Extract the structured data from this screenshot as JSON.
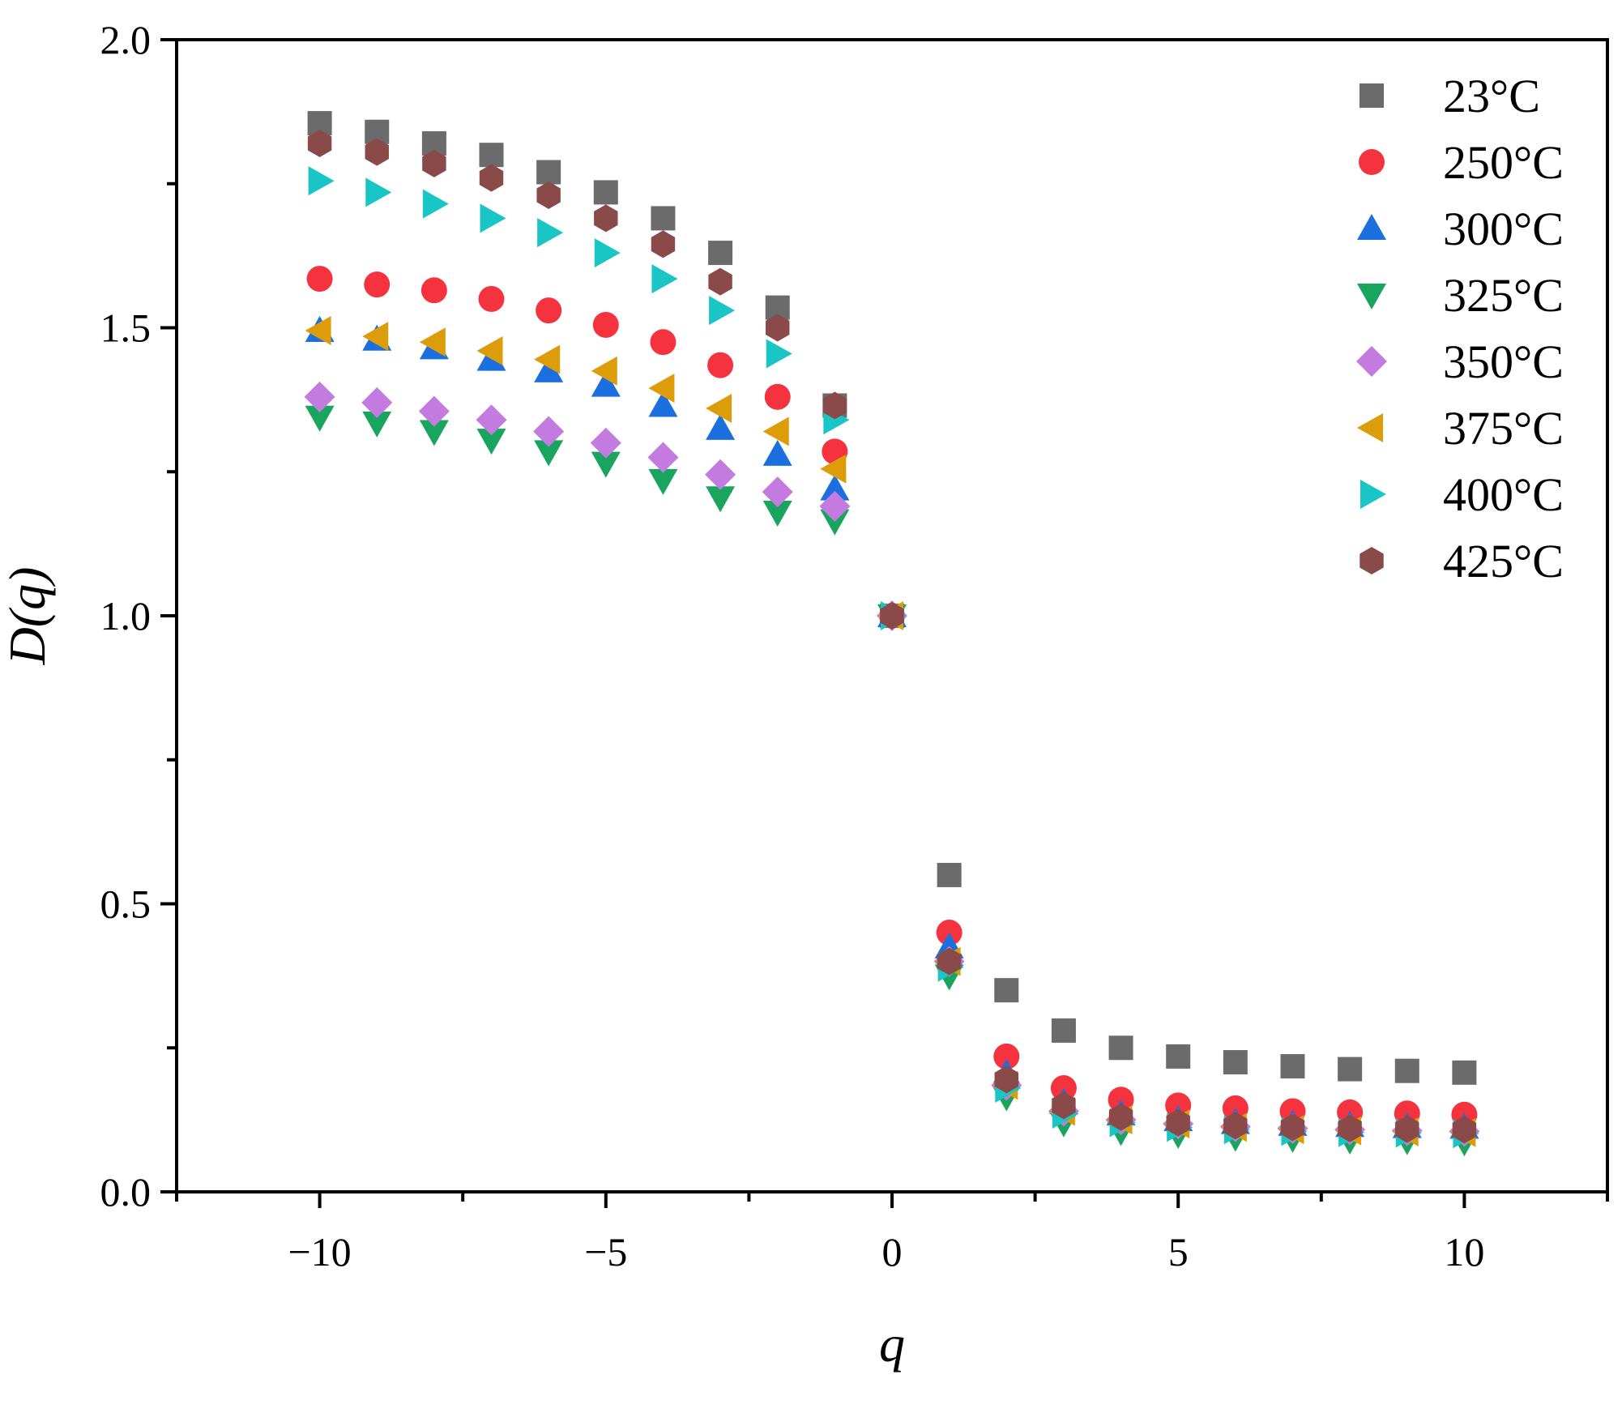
{
  "chart_data": {
    "type": "scatter",
    "title": "",
    "xlabel": "q",
    "ylabel": "D(q)",
    "xlim": [
      -12.5,
      12.5
    ],
    "ylim": [
      0,
      2
    ],
    "x_ticks": [
      -10,
      -5,
      0,
      5,
      10
    ],
    "x_tick_labels": [
      "−10",
      "−5",
      "0",
      "5",
      "10"
    ],
    "y_ticks": [
      0,
      0.5,
      1,
      1.5,
      2
    ],
    "y_tick_labels": [
      "0.0",
      "0.5",
      "1.0",
      "1.5",
      "2.0"
    ],
    "grid": false,
    "legend_position": "top-right",
    "x": [
      -10,
      -9,
      -8,
      -7,
      -6,
      -5,
      -4,
      -3,
      -2,
      -1,
      0,
      1,
      2,
      3,
      4,
      5,
      6,
      7,
      8,
      9,
      10
    ],
    "series": [
      {
        "name": "23°C",
        "marker": "square",
        "color": "#6b6b6b",
        "values": [
          1.855,
          1.84,
          1.82,
          1.8,
          1.77,
          1.735,
          1.69,
          1.63,
          1.535,
          1.365,
          1.0,
          0.55,
          0.35,
          0.28,
          0.25,
          0.235,
          0.225,
          0.218,
          0.213,
          0.21,
          0.207
        ]
      },
      {
        "name": "250°C",
        "marker": "circle",
        "color": "#f5333f",
        "values": [
          1.585,
          1.575,
          1.565,
          1.55,
          1.53,
          1.505,
          1.475,
          1.435,
          1.38,
          1.285,
          1.0,
          0.45,
          0.235,
          0.18,
          0.16,
          0.15,
          0.145,
          0.14,
          0.138,
          0.136,
          0.134
        ]
      },
      {
        "name": "300°C",
        "marker": "triangle-up",
        "color": "#1b6fde",
        "values": [
          1.495,
          1.48,
          1.465,
          1.445,
          1.425,
          1.4,
          1.365,
          1.325,
          1.28,
          1.22,
          1.0,
          0.425,
          0.205,
          0.155,
          0.135,
          0.125,
          0.12,
          0.117,
          0.115,
          0.113,
          0.112
        ]
      },
      {
        "name": "325°C",
        "marker": "triangle-down",
        "color": "#1aa55e",
        "values": [
          1.345,
          1.335,
          1.32,
          1.305,
          1.285,
          1.265,
          1.235,
          1.205,
          1.18,
          1.165,
          1.0,
          0.375,
          0.165,
          0.12,
          0.105,
          0.1,
          0.095,
          0.093,
          0.09,
          0.089,
          0.087
        ]
      },
      {
        "name": "350°C",
        "marker": "diamond",
        "color": "#c47be0",
        "values": [
          1.38,
          1.37,
          1.355,
          1.34,
          1.32,
          1.3,
          1.275,
          1.245,
          1.215,
          1.19,
          1.0,
          0.4,
          0.185,
          0.14,
          0.125,
          0.118,
          0.113,
          0.11,
          0.108,
          0.106,
          0.105
        ]
      },
      {
        "name": "375°C",
        "marker": "triangle-left",
        "color": "#dd9c0a",
        "values": [
          1.495,
          1.485,
          1.475,
          1.46,
          1.445,
          1.425,
          1.395,
          1.36,
          1.32,
          1.255,
          1.0,
          0.4,
          0.185,
          0.14,
          0.125,
          0.118,
          0.112,
          0.108,
          0.106,
          0.104,
          0.103
        ]
      },
      {
        "name": "400°C",
        "marker": "triangle-right",
        "color": "#19c5c5",
        "values": [
          1.755,
          1.735,
          1.715,
          1.69,
          1.665,
          1.63,
          1.585,
          1.53,
          1.455,
          1.34,
          1.0,
          0.39,
          0.18,
          0.135,
          0.12,
          0.112,
          0.108,
          0.105,
          0.103,
          0.102,
          0.101
        ]
      },
      {
        "name": "425°C",
        "marker": "hexagon",
        "color": "#8b4a4a",
        "values": [
          1.82,
          1.805,
          1.785,
          1.76,
          1.73,
          1.69,
          1.645,
          1.58,
          1.5,
          1.365,
          1.0,
          0.4,
          0.195,
          0.15,
          0.13,
          0.12,
          0.115,
          0.112,
          0.11,
          0.109,
          0.108
        ]
      }
    ]
  }
}
